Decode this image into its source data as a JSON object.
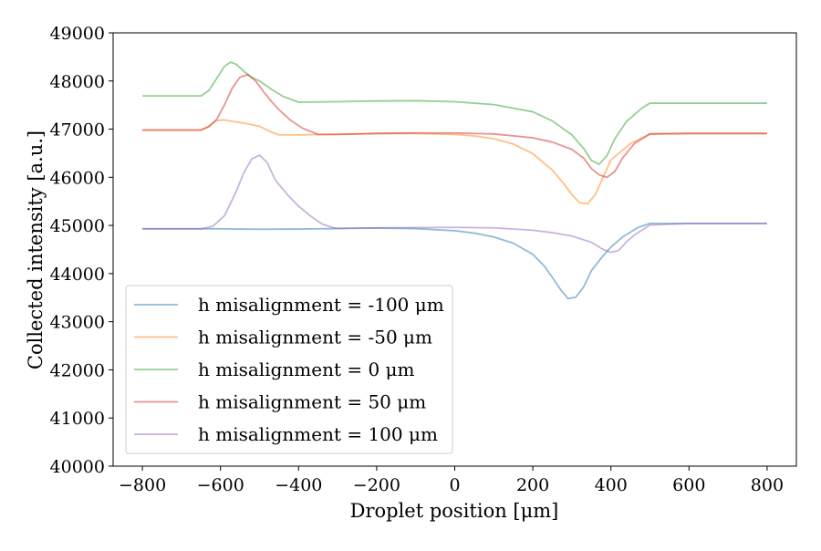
{
  "chart_data": {
    "type": "line",
    "xlabel": "Droplet position [μm]",
    "ylabel": "Collected intensity [a.u.]",
    "xlim": [
      -875,
      875
    ],
    "ylim": [
      40000,
      49000
    ],
    "x_ticks": [
      -800,
      -600,
      -400,
      -200,
      0,
      200,
      400,
      600,
      800
    ],
    "x_tick_labels": [
      "−800",
      "−600",
      "−400",
      "−200",
      "0",
      "200",
      "400",
      "600",
      "800"
    ],
    "y_ticks": [
      40000,
      41000,
      42000,
      43000,
      44000,
      45000,
      46000,
      47000,
      48000,
      49000
    ],
    "y_tick_labels": [
      "40000",
      "41000",
      "42000",
      "43000",
      "44000",
      "45000",
      "46000",
      "47000",
      "48000",
      "49000"
    ],
    "grid": false,
    "legend_position": "lower-left",
    "series": [
      {
        "name": "h misalignment = -100 μm",
        "color": "#1f77b4",
        "x": [
          -800,
          -650,
          -600,
          -500,
          -400,
          -300,
          -200,
          -100,
          0,
          50,
          100,
          150,
          200,
          230,
          250,
          270,
          290,
          310,
          330,
          350,
          380,
          400,
          430,
          470,
          500,
          600,
          700,
          800
        ],
        "y": [
          44930,
          44930,
          44930,
          44920,
          44925,
          44935,
          44945,
          44935,
          44890,
          44840,
          44760,
          44630,
          44400,
          44150,
          43920,
          43680,
          43480,
          43510,
          43720,
          44060,
          44370,
          44550,
          44760,
          44960,
          45040,
          45040,
          45040,
          45040
        ]
      },
      {
        "name": "h misalignment = -50 μm",
        "color": "#ff7f0e",
        "x": [
          -800,
          -650,
          -630,
          -610,
          -590,
          -560,
          -530,
          -500,
          -470,
          -450,
          -400,
          -300,
          -200,
          -100,
          0,
          50,
          100,
          150,
          200,
          250,
          280,
          300,
          320,
          340,
          360,
          380,
          400,
          450,
          500,
          600,
          700,
          800
        ],
        "y": [
          46980,
          46980,
          47060,
          47180,
          47190,
          47150,
          47110,
          47060,
          46940,
          46880,
          46880,
          46895,
          46910,
          46910,
          46890,
          46860,
          46800,
          46690,
          46490,
          46150,
          45860,
          45640,
          45470,
          45450,
          45640,
          46000,
          46360,
          46700,
          46900,
          46910,
          46910,
          46910
        ]
      },
      {
        "name": "h misalignment = 0 μm",
        "color": "#2ca02c",
        "x": [
          -800,
          -650,
          -630,
          -610,
          -590,
          -575,
          -560,
          -540,
          -520,
          -500,
          -470,
          -440,
          -400,
          -300,
          -200,
          -100,
          0,
          100,
          200,
          250,
          300,
          330,
          350,
          370,
          390,
          410,
          440,
          480,
          500,
          600,
          700,
          800
        ],
        "y": [
          47690,
          47690,
          47800,
          48050,
          48300,
          48390,
          48350,
          48200,
          48080,
          48000,
          47830,
          47680,
          47560,
          47570,
          47585,
          47590,
          47570,
          47510,
          47360,
          47170,
          46880,
          46600,
          46350,
          46270,
          46450,
          46800,
          47160,
          47440,
          47540,
          47540,
          47540,
          47540
        ]
      },
      {
        "name": "h misalignment = 50 μm",
        "color": "#d62728",
        "x": [
          -800,
          -650,
          -630,
          -610,
          -590,
          -570,
          -550,
          -530,
          -510,
          -490,
          -470,
          -450,
          -420,
          -390,
          -350,
          -300,
          -200,
          -100,
          0,
          100,
          200,
          250,
          300,
          330,
          350,
          370,
          390,
          410,
          430,
          460,
          500,
          600,
          700,
          800
        ],
        "y": [
          46980,
          46980,
          47050,
          47200,
          47500,
          47850,
          48080,
          48130,
          48000,
          47780,
          47580,
          47400,
          47180,
          47020,
          46890,
          46890,
          46910,
          46920,
          46920,
          46900,
          46820,
          46730,
          46580,
          46400,
          46180,
          46050,
          46000,
          46120,
          46400,
          46700,
          46900,
          46910,
          46910,
          46910
        ]
      },
      {
        "name": "h misalignment = 100 μm",
        "color": "#9467bd",
        "x": [
          -800,
          -650,
          -620,
          -590,
          -560,
          -540,
          -520,
          -500,
          -480,
          -460,
          -430,
          -400,
          -370,
          -340,
          -310,
          -300,
          -200,
          -100,
          0,
          100,
          200,
          250,
          300,
          350,
          380,
          400,
          420,
          440,
          460,
          500,
          600,
          700,
          800
        ],
        "y": [
          44930,
          44930,
          44980,
          45200,
          45700,
          46100,
          46380,
          46460,
          46300,
          45950,
          45650,
          45400,
          45200,
          45030,
          44950,
          44940,
          44950,
          44955,
          44960,
          44950,
          44900,
          44850,
          44780,
          44650,
          44500,
          44440,
          44480,
          44660,
          44800,
          45010,
          45040,
          45040,
          45040
        ]
      }
    ]
  }
}
